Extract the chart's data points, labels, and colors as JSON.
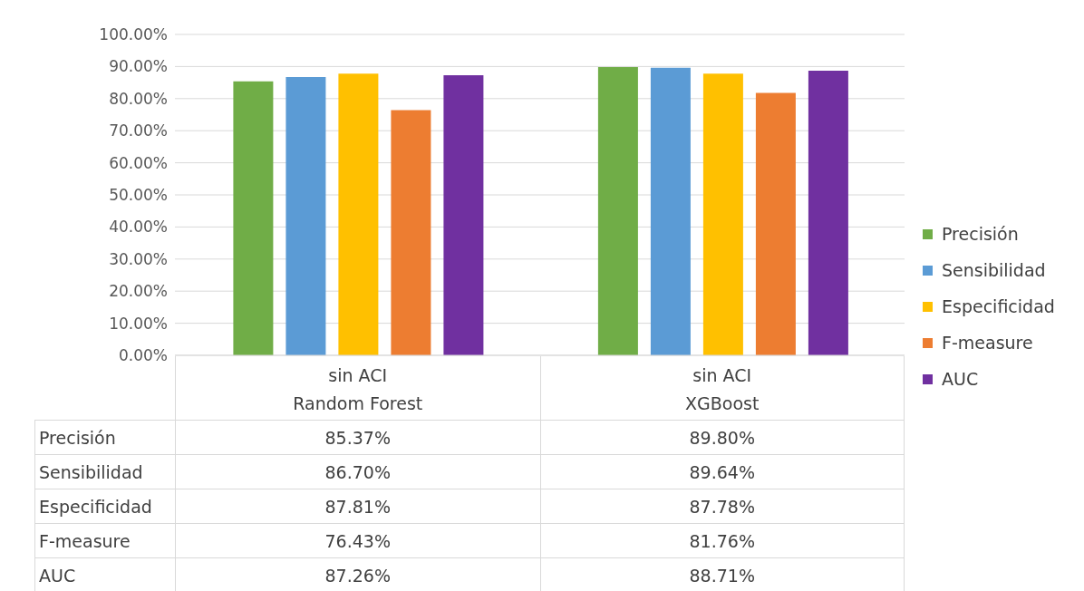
{
  "chart_data": {
    "type": "bar",
    "categories": [
      "sin ACI\nRandom Forest",
      "sin ACI\nXGBoost"
    ],
    "series": [
      {
        "name": "Precisión",
        "color": "#70ad47",
        "values": [
          85.37,
          89.8
        ],
        "value_labels": [
          "85.37%",
          "89.80%"
        ]
      },
      {
        "name": "Sensibilidad",
        "color": "#5b9bd5",
        "values": [
          86.7,
          89.64
        ],
        "value_labels": [
          "86.70%",
          "89.64%"
        ]
      },
      {
        "name": "Especificidad",
        "color": "#ffc000",
        "values": [
          87.81,
          87.78
        ],
        "value_labels": [
          "87.81%",
          "87.78%"
        ]
      },
      {
        "name": "F-measure",
        "color": "#ed7d31",
        "values": [
          76.43,
          81.76
        ],
        "value_labels": [
          "76.43%",
          "81.76%"
        ]
      },
      {
        "name": "AUC",
        "color": "#7030a0",
        "values": [
          87.26,
          88.71
        ],
        "value_labels": [
          "87.26%",
          "88.71%"
        ]
      }
    ],
    "ylim": [
      0,
      100
    ],
    "yticks": [
      {
        "value": 0,
        "label": "0.00%"
      },
      {
        "value": 10,
        "label": "10.00%"
      },
      {
        "value": 20,
        "label": "20.00%"
      },
      {
        "value": 30,
        "label": "30.00%"
      },
      {
        "value": 40,
        "label": "40.00%"
      },
      {
        "value": 50,
        "label": "50.00%"
      },
      {
        "value": 60,
        "label": "60.00%"
      },
      {
        "value": 70,
        "label": "70.00%"
      },
      {
        "value": 80,
        "label": "80.00%"
      },
      {
        "value": 90,
        "label": "90.00%"
      },
      {
        "value": 100,
        "label": "100.00%"
      }
    ],
    "grid": "y",
    "legend": "right"
  }
}
